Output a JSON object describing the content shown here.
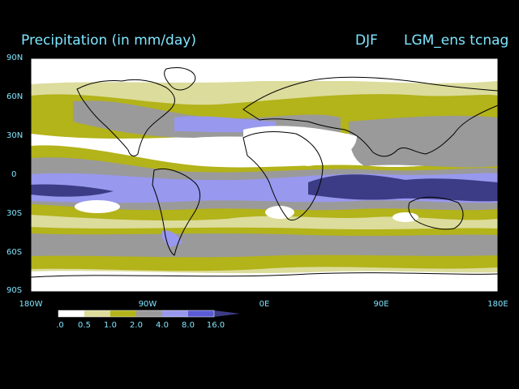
{
  "header": {
    "title": "Precipitation (in mm/day)",
    "season": "DJF",
    "experiment": "LGM_ens tcnag"
  },
  "map": {
    "projection": "equirectangular",
    "lon_range": [
      -180,
      180
    ],
    "lat_range": [
      -90,
      90
    ],
    "lat_labels": [
      "90N",
      "60N",
      "30N",
      "0",
      "30S",
      "60S",
      "90S"
    ],
    "lon_labels": [
      "180W",
      "90W",
      "0E",
      "90E",
      "180E"
    ],
    "field": "precipitation",
    "units": "mm/day"
  },
  "colorbar": {
    "labels": [
      ".0",
      "0.5",
      "1.0",
      "2.0",
      "4.0",
      "8.0",
      "16.0"
    ],
    "colors": [
      "#ffffff",
      "#dcdc9c",
      "#b3b31a",
      "#9a9a9a",
      "#9898ee",
      "#5b5bd6",
      "#3c3c86"
    ]
  },
  "colors": {
    "text": "#7fe6ff",
    "background": "#000000",
    "coastline": "#000000"
  }
}
